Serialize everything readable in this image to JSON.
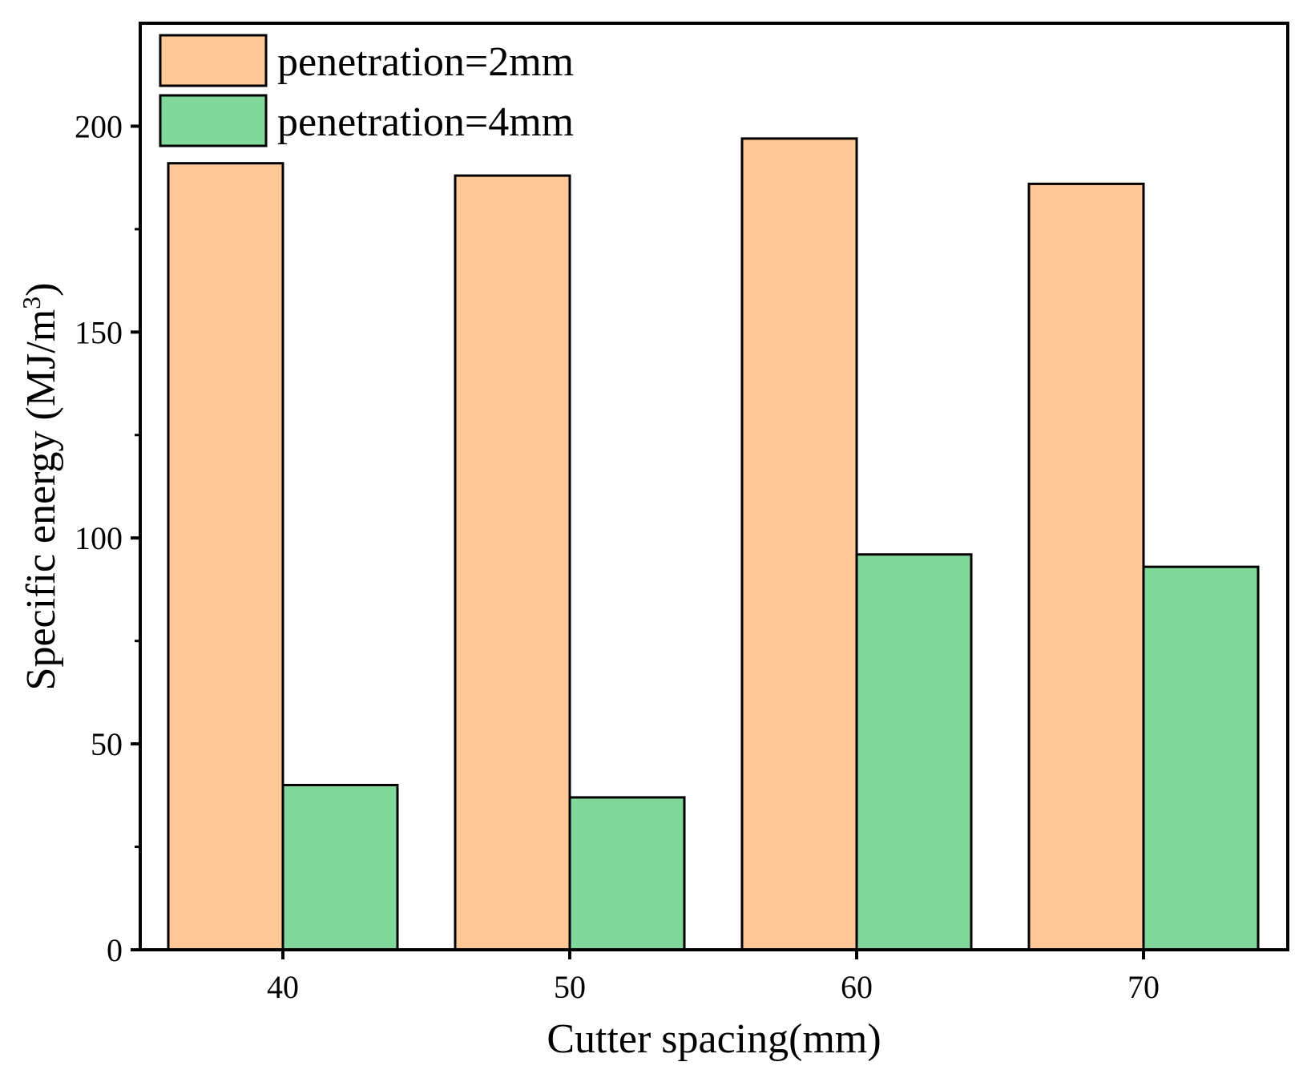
{
  "chart_data": {
    "type": "bar",
    "title": "",
    "xlabel": "Cutter spacing(mm)",
    "ylabel": "Specific energy (MJ/m",
    "ylabel_superscript": "3",
    "ylabel_suffix": ")",
    "categories": [
      "40",
      "50",
      "60",
      "70"
    ],
    "ylim": [
      0,
      225
    ],
    "yticks": [
      0,
      50,
      100,
      150,
      200
    ],
    "ytick_labels": [
      "0",
      "50",
      "100",
      "150",
      "200"
    ],
    "grid": false,
    "legend_position": "top-left",
    "series": [
      {
        "name": "penetration=2mm",
        "color": "#FFC896",
        "values": [
          191,
          188,
          197,
          186
        ]
      },
      {
        "name": "penetration=4mm",
        "color": "#80D99A",
        "values": [
          40,
          37,
          96,
          93
        ]
      }
    ]
  }
}
